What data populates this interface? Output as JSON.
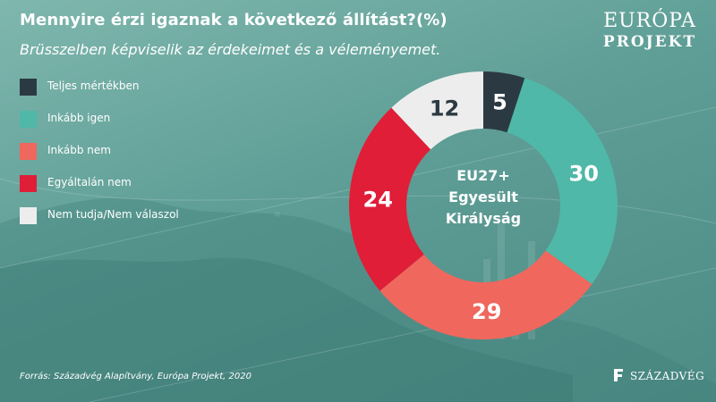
{
  "header": {
    "title": "Mennyire érzi igaznak a következő állítást?(%)",
    "subtitle": "Brüsszelben képviselik az érdekeimet és a véleményemet."
  },
  "logo": {
    "top": "EURÓPA",
    "bottom": "PROJEKT"
  },
  "source": "Forrás: Századvég Alapítvány, Európa Projekt, 2020",
  "brand": "SZÁZADVÉG",
  "chart_data": {
    "type": "pie",
    "style": "donut",
    "center_label": [
      "EU27+",
      "Egyesült",
      "Királyság"
    ],
    "legend_position": "left",
    "categories": [
      "Teljes mértékben",
      "Inkább igen",
      "Inkább nem",
      "Egyáltalán nem",
      "Nem tudja/Nem válaszol"
    ],
    "values": [
      5,
      30,
      29,
      24,
      12
    ],
    "colors": [
      "#2b3a42",
      "#4fb8a8",
      "#f0675d",
      "#e01e37",
      "#ededed"
    ],
    "label_colors": [
      "#ffffff",
      "#ffffff",
      "#ffffff",
      "#ffffff",
      "#2b3a42"
    ]
  }
}
